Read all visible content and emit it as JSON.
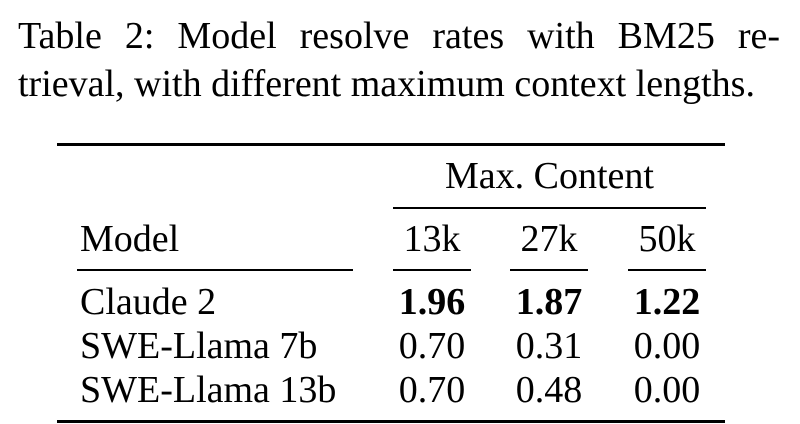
{
  "caption": {
    "line1": "Table 2:  Model resolve rates with BM25 re-",
    "line2": "trieval, with different maximum context lengths."
  },
  "table": {
    "group_header": "Max. Content",
    "columns": {
      "model": "Model",
      "c13k": "13k",
      "c27k": "27k",
      "c50k": "50k"
    },
    "rows": [
      {
        "model": "Claude 2",
        "c13k": "1.96",
        "c27k": "1.87",
        "c50k": "1.22",
        "bold": true
      },
      {
        "model": "SWE-Llama 7b",
        "c13k": "0.70",
        "c27k": "0.31",
        "c50k": "0.00"
      },
      {
        "model": "SWE-Llama 13b",
        "c13k": "0.70",
        "c27k": "0.48",
        "c50k": "0.00"
      }
    ]
  }
}
